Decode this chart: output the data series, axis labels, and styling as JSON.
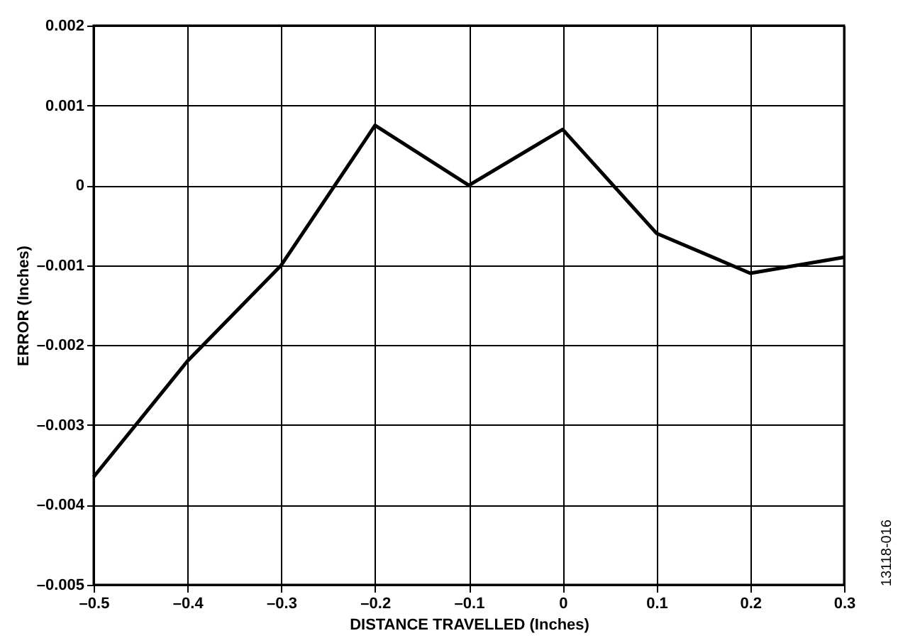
{
  "chart_data": {
    "type": "line",
    "xlabel": "DISTANCE TRAVELLED (Inches)",
    "ylabel": "ERROR (Inches)",
    "x": [
      -0.5,
      -0.4,
      -0.3,
      -0.2,
      -0.1,
      0,
      0.1,
      0.2,
      0.3
    ],
    "series": [
      {
        "color": "#000000",
        "values": [
          -0.00365,
          -0.0022,
          -0.001,
          0.00075,
          0,
          0.0007,
          -0.0006,
          -0.0011,
          -0.0009
        ]
      }
    ],
    "xlim": [
      -0.5,
      0.3
    ],
    "xticks": [
      {
        "value": -0.5,
        "label": "–0.5"
      },
      {
        "value": -0.4,
        "label": "–0.4"
      },
      {
        "value": -0.3,
        "label": "–0.3"
      },
      {
        "value": -0.2,
        "label": "–0.2"
      },
      {
        "value": -0.1,
        "label": "–0.1"
      },
      "0",
      0.1,
      0.2,
      0.3
    ],
    "ylim": [
      -0.005,
      0.002
    ],
    "yticks": [
      {
        "value": -0.005,
        "label": "–0.005"
      },
      {
        "value": -0.004,
        "label": "–0.004"
      },
      {
        "value": -0.003,
        "label": "–0.003"
      },
      {
        "value": -0.002,
        "label": "–0.002"
      },
      {
        "value": -0.001,
        "label": "–0.001"
      },
      0,
      0.001,
      0.002
    ],
    "grid": true,
    "annotations": [
      "13118-016"
    ]
  }
}
